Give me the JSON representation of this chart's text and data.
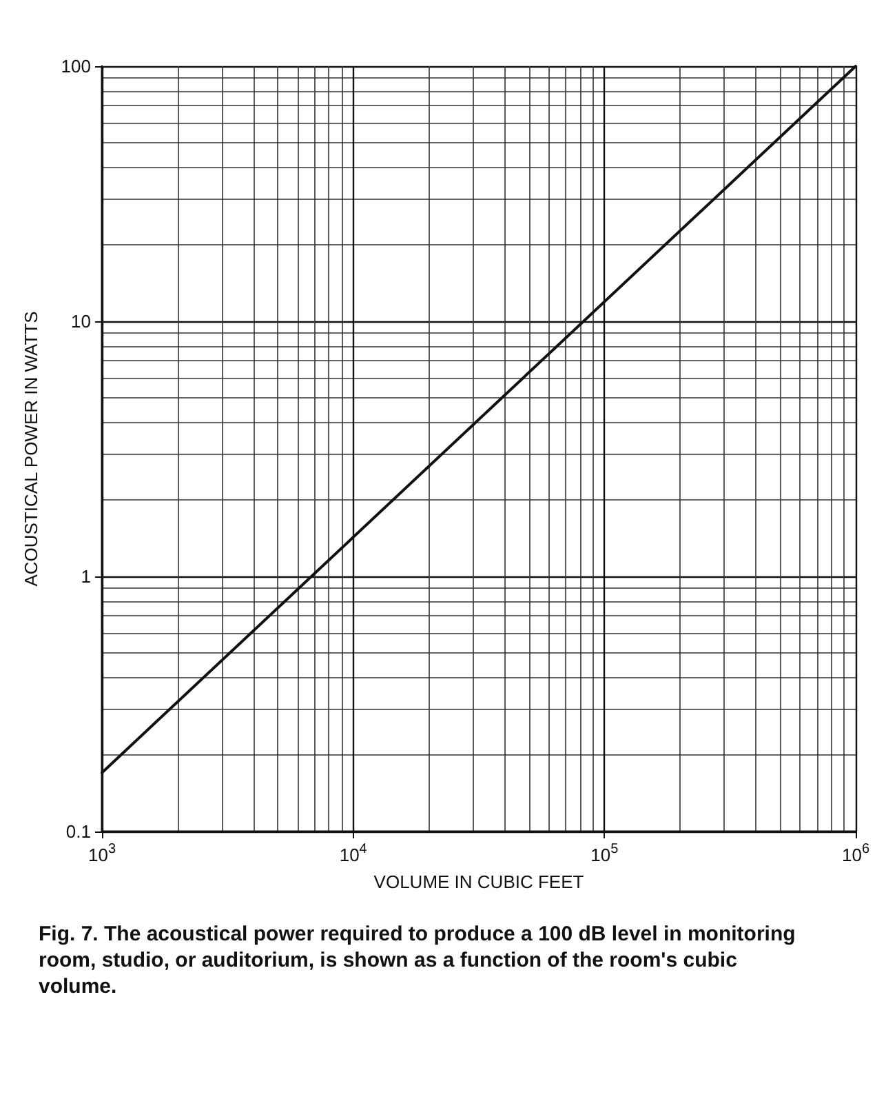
{
  "chart_data": {
    "type": "line",
    "xlabel": "VOLUME IN CUBIC FEET",
    "ylabel": "ACOUSTICAL POWER IN WATTS",
    "x": [
      1000,
      1000000
    ],
    "series": [
      {
        "color": "#111111",
        "values": [
          0.17,
          100
        ]
      }
    ],
    "log": "xy",
    "xlim": [
      1000,
      1000000
    ],
    "ylim": [
      0.1,
      100
    ],
    "xticks": [
      {
        "value": 1000,
        "label": "10$^{3}$"
      },
      {
        "value": 10000,
        "label": "10$^{4}$"
      },
      {
        "value": 100000,
        "label": "10$^{5}$"
      },
      {
        "value": 1000000,
        "label": "10$^{6}$"
      }
    ],
    "yticks": [
      0.1,
      1,
      10,
      100
    ],
    "grid": true,
    "marker": "none",
    "line_style": "solid",
    "annotations": [
      "Fig. 7. The acoustical power required to produce a 100 dB level in monitoring room, studio, or auditorium, is shown as a function of the room's cubic volume."
    ]
  }
}
